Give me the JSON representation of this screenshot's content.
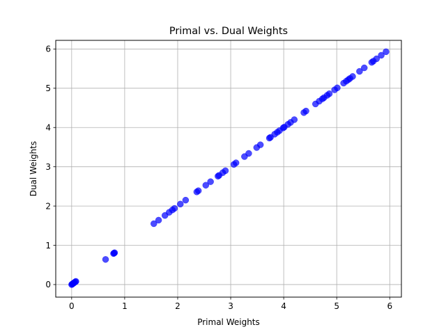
{
  "chart_data": {
    "type": "scatter",
    "title": "Primal vs. Dual Weights",
    "xlabel": "Primal Weights",
    "ylabel": "Dual Weights",
    "xlim": [
      -0.3,
      6.22
    ],
    "ylim": [
      -0.32,
      6.22
    ],
    "xticks": [
      0,
      1,
      2,
      3,
      4,
      5,
      6
    ],
    "yticks": [
      0,
      1,
      2,
      3,
      4,
      5,
      6
    ],
    "grid": true,
    "marker_color": "#0000ff",
    "marker_opacity": 0.7,
    "series": [
      {
        "x": [
          0,
          0.01,
          0.02,
          0.03,
          0.04,
          0.05,
          0.07,
          0.08,
          0.64,
          0.79,
          0.8,
          0.81,
          1.55,
          1.64,
          1.76,
          1.84,
          1.9,
          1.94,
          2.05,
          2.15,
          2.36,
          2.39,
          2.53,
          2.62,
          2.76,
          2.78,
          2.85,
          2.9,
          3.06,
          3.1,
          3.26,
          3.34,
          3.49,
          3.56,
          3.73,
          3.75,
          3.83,
          3.88,
          3.92,
          3.99,
          4.01,
          4.08,
          4.13,
          4.2,
          4.38,
          4.42,
          4.6,
          4.67,
          4.73,
          4.76,
          4.82,
          4.86,
          4.96,
          5.01,
          5.13,
          5.18,
          5.22,
          5.25,
          5.3,
          5.43,
          5.52,
          5.66,
          5.69,
          5.75,
          5.84,
          5.93
        ],
        "y": [
          0,
          0.01,
          0.02,
          0.03,
          0.04,
          0.05,
          0.07,
          0.08,
          0.64,
          0.79,
          0.8,
          0.81,
          1.55,
          1.64,
          1.76,
          1.84,
          1.9,
          1.94,
          2.05,
          2.15,
          2.36,
          2.39,
          2.53,
          2.62,
          2.76,
          2.78,
          2.85,
          2.9,
          3.06,
          3.1,
          3.26,
          3.34,
          3.49,
          3.56,
          3.73,
          3.75,
          3.83,
          3.88,
          3.92,
          3.99,
          4.01,
          4.08,
          4.13,
          4.2,
          4.38,
          4.42,
          4.6,
          4.67,
          4.73,
          4.76,
          4.82,
          4.86,
          4.96,
          5.01,
          5.13,
          5.18,
          5.22,
          5.25,
          5.3,
          5.43,
          5.52,
          5.66,
          5.69,
          5.75,
          5.84,
          5.93
        ]
      }
    ]
  }
}
